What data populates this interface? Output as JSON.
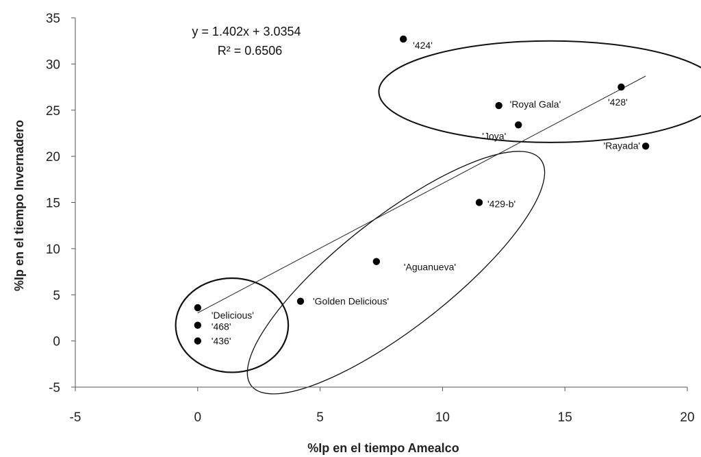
{
  "chart_data": {
    "type": "scatter",
    "title": "",
    "xlabel": "%Ip en el tiempo Amealco",
    "ylabel": "%Ip en el tiempo  Invernadero",
    "xlim": [
      -5,
      20
    ],
    "ylim": [
      -5,
      35
    ],
    "xticks": [
      "-5",
      "0",
      "5",
      "10",
      "15",
      "20"
    ],
    "yticks": [
      "-5",
      "0",
      "5",
      "10",
      "15",
      "20",
      "25",
      "30",
      "35"
    ],
    "grid": false,
    "legend": "none",
    "points": [
      {
        "label": "'424'",
        "x": 8.4,
        "y": 32.7
      },
      {
        "label": "'428'",
        "x": 17.3,
        "y": 27.5
      },
      {
        "label": "'Royal Gala'",
        "x": 12.3,
        "y": 25.5
      },
      {
        "label": "'Joya'",
        "x": 13.1,
        "y": 23.4
      },
      {
        "label": "'Rayada'",
        "x": 18.3,
        "y": 21.1
      },
      {
        "label": "'429-b'",
        "x": 11.5,
        "y": 15.0
      },
      {
        "label": "'Aguanueva'",
        "x": 7.3,
        "y": 8.6
      },
      {
        "label": "'Golden Delicious'",
        "x": 4.2,
        "y": 4.3
      },
      {
        "label": "'Delicious'",
        "x": 0.0,
        "y": 3.6
      },
      {
        "label": "'468'",
        "x": 0.0,
        "y": 1.7
      },
      {
        "label": "'436'",
        "x": 0.0,
        "y": 0.0
      }
    ],
    "trendline": {
      "equation": "y = 1.402x  + 3.0354",
      "r_squared": "R² = 0.6506",
      "slope": 1.402,
      "intercept": 3.0354,
      "x_range": [
        0,
        18.3
      ]
    },
    "groups": [
      {
        "members": [
          "'424'",
          "'428'",
          "'Royal Gala'",
          "'Joya'",
          "'Rayada'"
        ],
        "center": [
          14.4,
          27.0
        ],
        "semi_axes": [
          7.0,
          5.5
        ],
        "rotation_deg": 0
      },
      {
        "members": [
          "'429-b'",
          "'Aguanueva'",
          "'Golden Delicious'"
        ],
        "center": [
          8.1,
          7.4
        ],
        "semi_axes": [
          7.5,
          6.0
        ],
        "rotation_deg": -38
      },
      {
        "members": [
          "'Delicious'",
          "'468'",
          "'436'"
        ],
        "center": [
          1.4,
          1.7
        ],
        "semi_axes": [
          2.3,
          5.1
        ],
        "rotation_deg": 0
      }
    ]
  }
}
